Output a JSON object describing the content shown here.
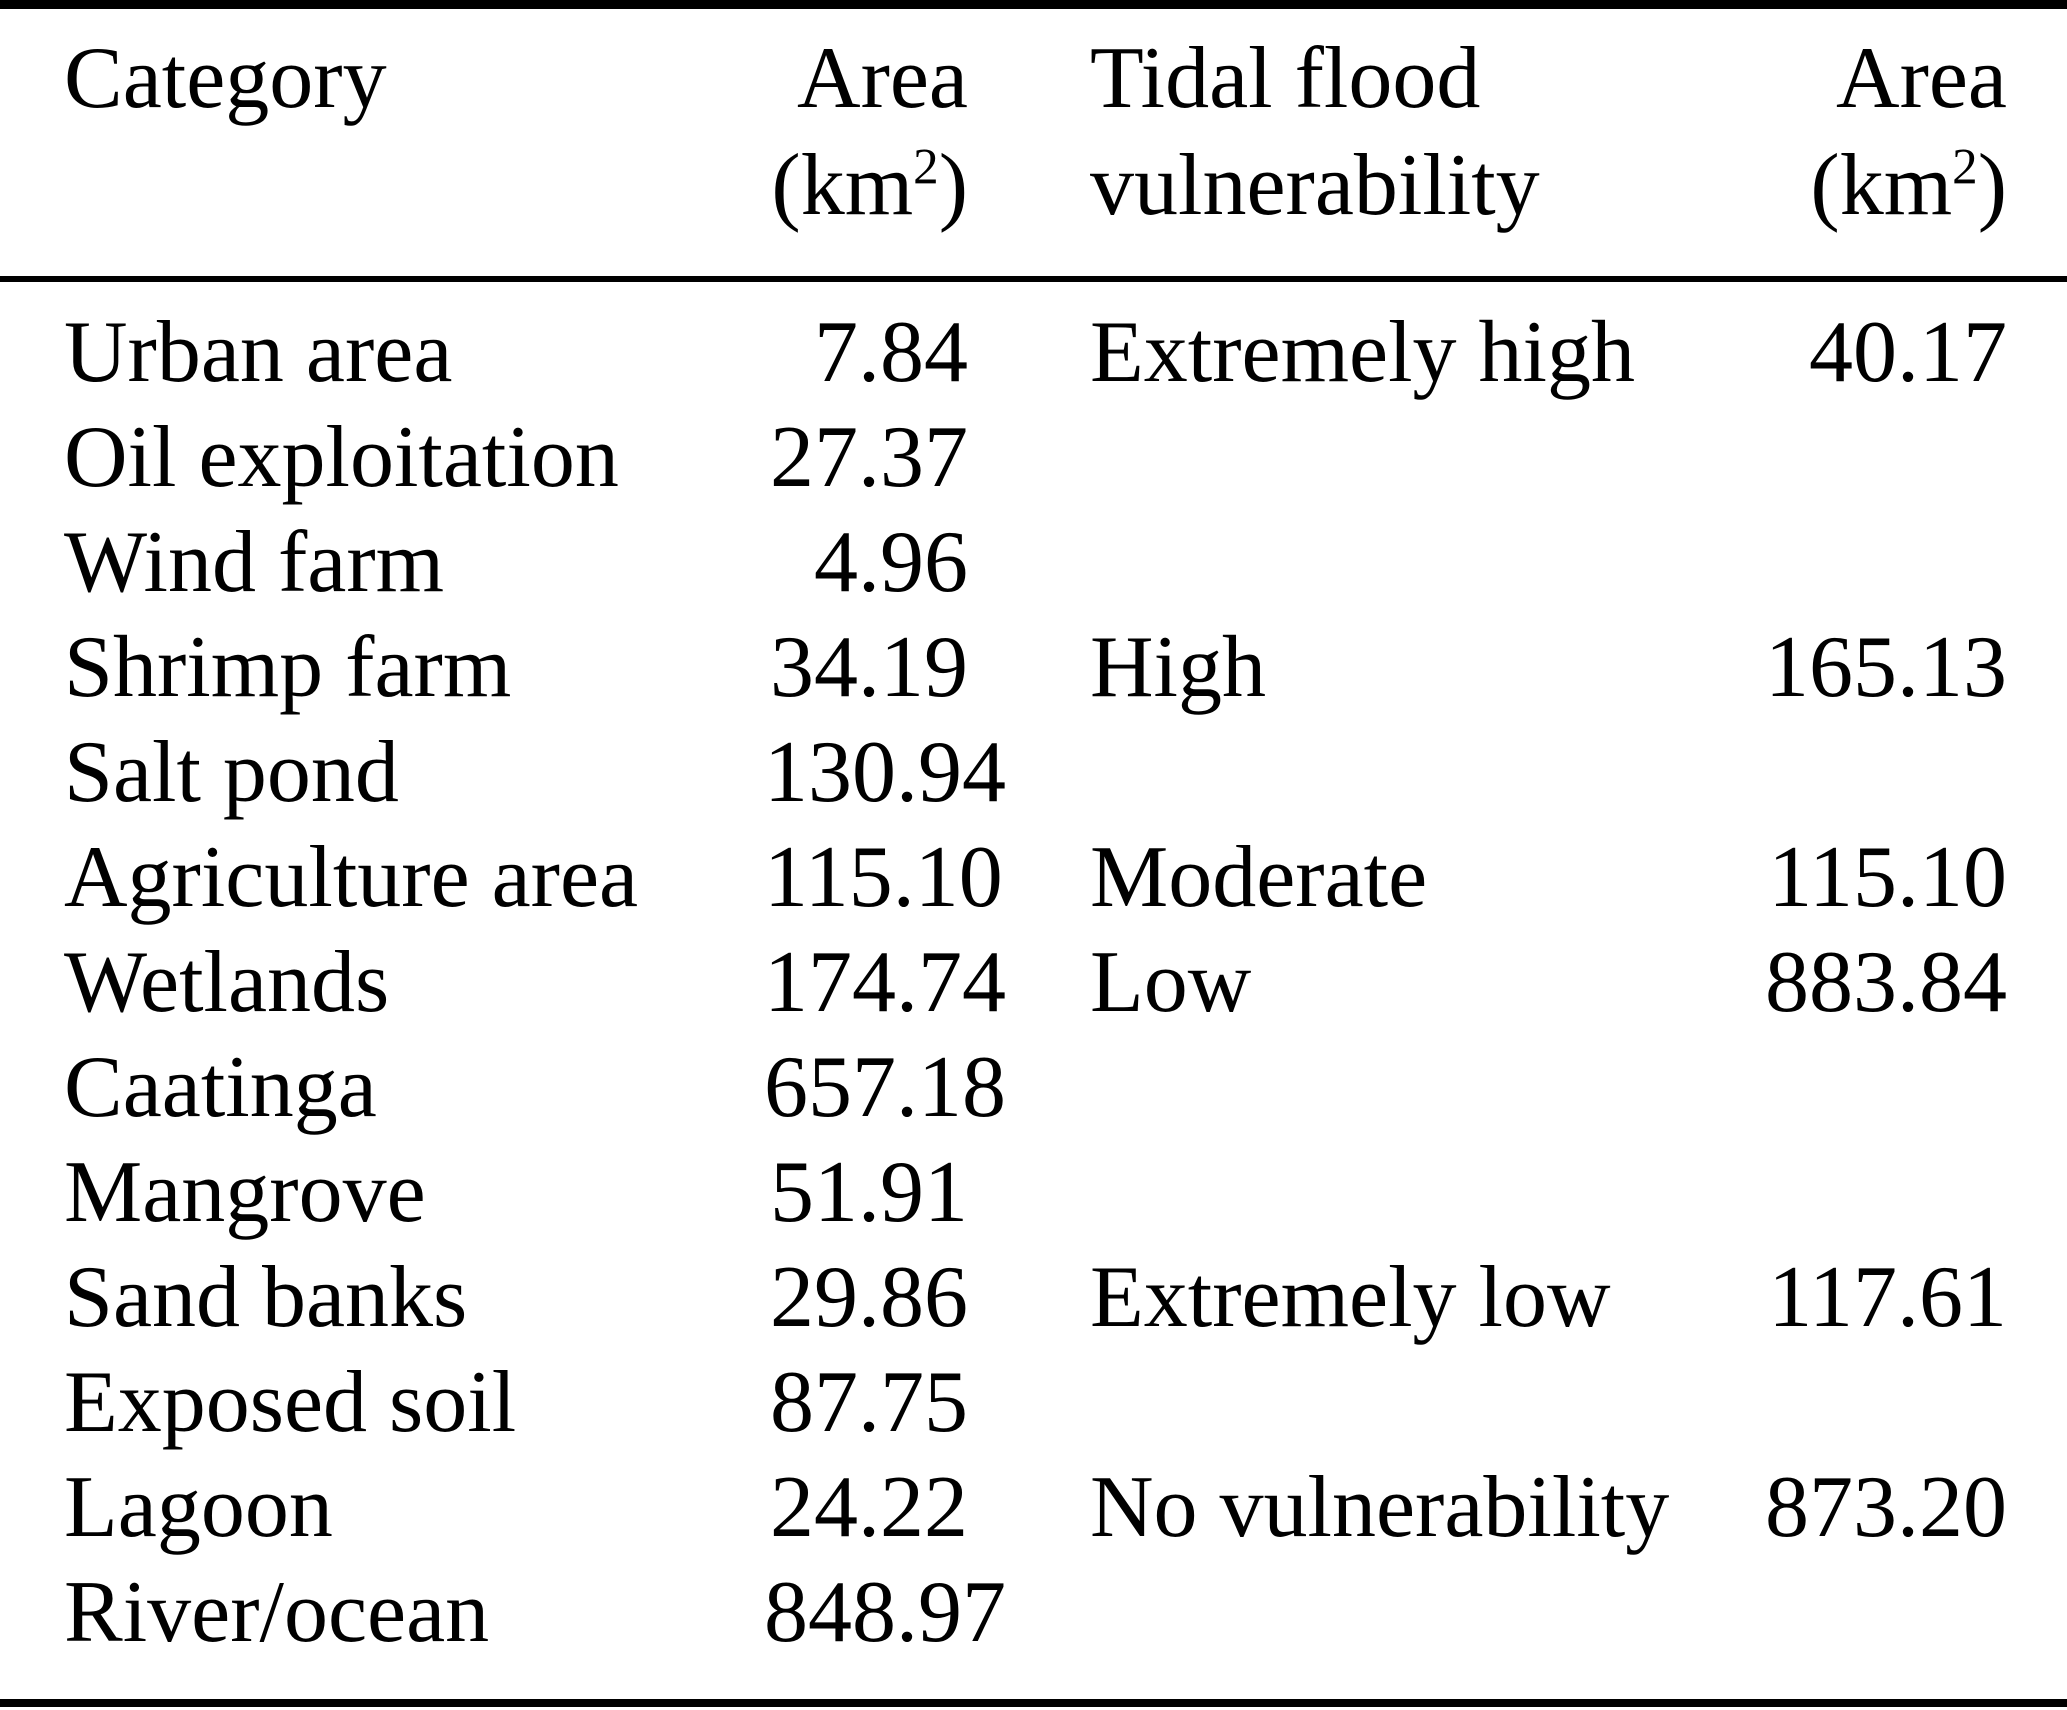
{
  "colors": {
    "background": "#ffffff",
    "text": "#000000",
    "rule": "#000000"
  },
  "table": {
    "headers": {
      "category": "Category",
      "area_label": "Area",
      "area_unit_prefix": "(km",
      "area_unit_sup": "2",
      "area_unit_suffix": ")",
      "vulnerability_line1": "Tidal flood",
      "vulnerability_line2": "vulnerability"
    },
    "rows": [
      {
        "category": "Urban area",
        "area": "7.84",
        "vulnerability": "Extremely high",
        "vulnerability_area": "40.17"
      },
      {
        "category": "Oil exploitation",
        "area": "27.37",
        "vulnerability": "",
        "vulnerability_area": ""
      },
      {
        "category": "Wind farm",
        "area": "4.96",
        "vulnerability": "",
        "vulnerability_area": ""
      },
      {
        "category": "Shrimp farm",
        "area": "34.19",
        "vulnerability": "High",
        "vulnerability_area": "165.13"
      },
      {
        "category": "Salt pond",
        "area": "130.94",
        "vulnerability": "",
        "vulnerability_area": ""
      },
      {
        "category": "Agriculture area",
        "area": "115.10",
        "vulnerability": "Moderate",
        "vulnerability_area": "115.10"
      },
      {
        "category": "Wetlands",
        "area": "174.74",
        "vulnerability": "Low",
        "vulnerability_area": "883.84"
      },
      {
        "category": "Caatinga",
        "area": "657.18",
        "vulnerability": "",
        "vulnerability_area": ""
      },
      {
        "category": "Mangrove",
        "area": "51.91",
        "vulnerability": "",
        "vulnerability_area": ""
      },
      {
        "category": "Sand banks",
        "area": "29.86",
        "vulnerability": "Extremely low",
        "vulnerability_area": "117.61"
      },
      {
        "category": "Exposed soil",
        "area": "87.75",
        "vulnerability": "",
        "vulnerability_area": ""
      },
      {
        "category": "Lagoon",
        "area": "24.22",
        "vulnerability": "No vulnerability",
        "vulnerability_area": "873.20"
      },
      {
        "category": "River/ocean",
        "area": "848.97",
        "vulnerability": "",
        "vulnerability_area": ""
      }
    ]
  }
}
